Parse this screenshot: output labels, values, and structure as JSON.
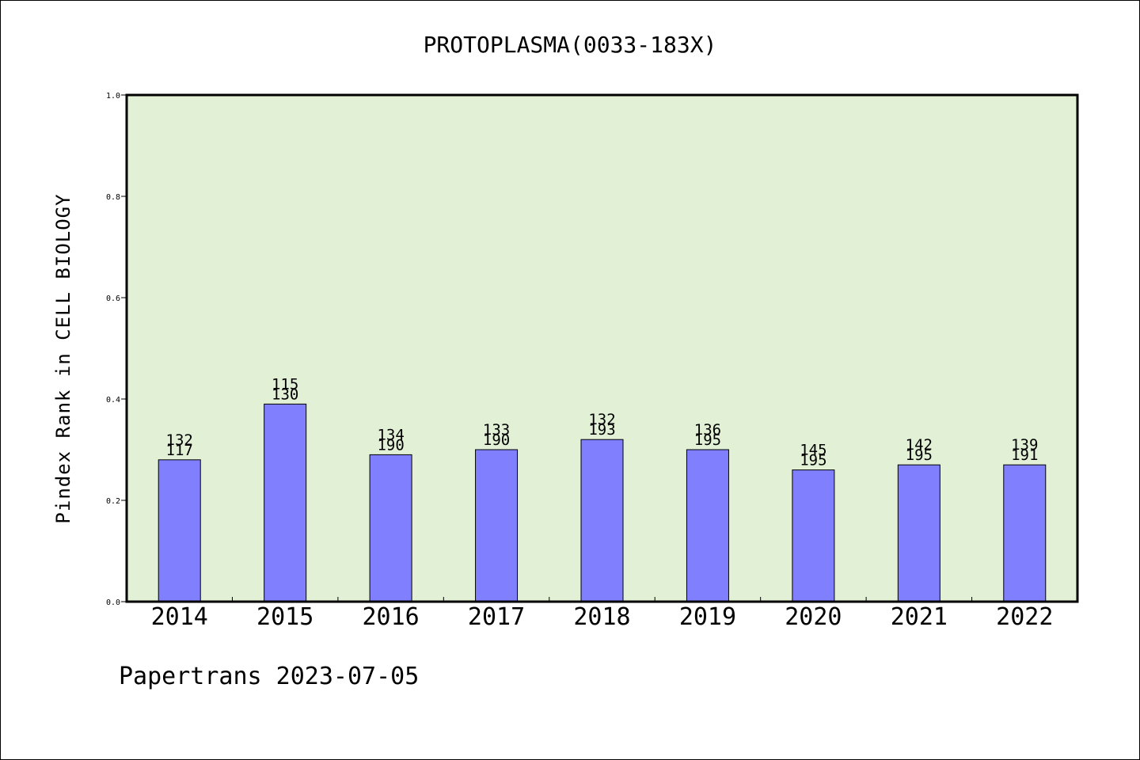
{
  "chart_data": {
    "type": "bar",
    "title": "PROTOPLASMA(0033-183X)",
    "xlabel": "",
    "ylabel": "Pindex Rank in CELL BIOLOGY",
    "ylim": [
      0,
      1.0
    ],
    "yticks": [
      "0.0",
      "0.2",
      "0.4",
      "0.6",
      "0.8",
      "1.0"
    ],
    "grid": false,
    "legend": "none",
    "categories": [
      "2014",
      "2015",
      "2016",
      "2017",
      "2018",
      "2019",
      "2020",
      "2021",
      "2022"
    ],
    "values": [
      0.28,
      0.39,
      0.29,
      0.3,
      0.32,
      0.3,
      0.26,
      0.27,
      0.27
    ],
    "labels_top": [
      "132",
      "115",
      "134",
      "133",
      "132",
      "136",
      "145",
      "142",
      "139"
    ],
    "labels_bottom": [
      "117",
      "130",
      "190",
      "190",
      "193",
      "195",
      "195",
      "195",
      "191"
    ]
  },
  "colors": {
    "plot_background": "#e2f0d6",
    "bar_fill": "#8080ff",
    "bar_stroke": "#000000"
  },
  "footer": "Papertrans 2023-07-05"
}
